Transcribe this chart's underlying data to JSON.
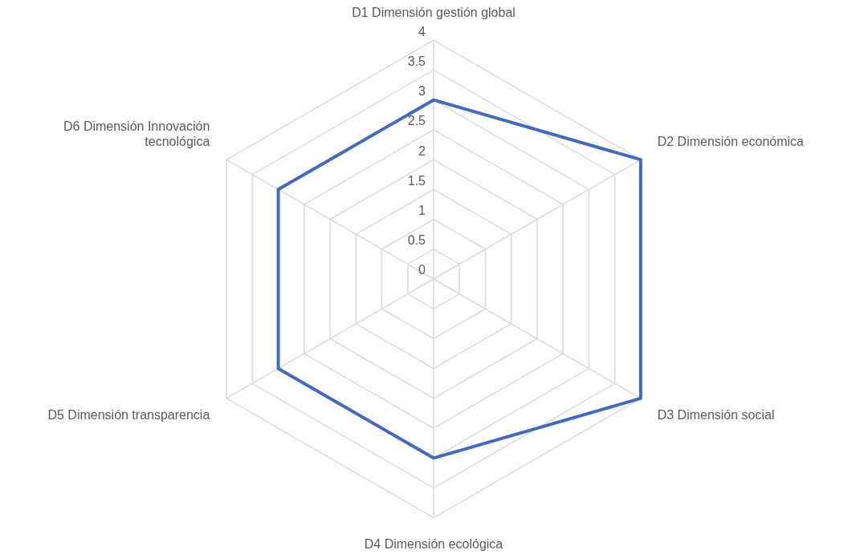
{
  "chart_data": {
    "type": "radar",
    "categories": [
      "D1 Dimensión gestión global",
      "D2 Dimensión económica",
      "D3 Dimensión social",
      "D4 Dimensión ecológica",
      "D5 Dimensión transparencia",
      "D6 Dimensión Innovación tecnológica"
    ],
    "series": [
      {
        "color": "#4169c4",
        "values": [
          3,
          4,
          4,
          3,
          3,
          3
        ]
      }
    ],
    "ylim": [
      0,
      4
    ],
    "yticks": [
      0,
      0.5,
      1,
      1.5,
      2,
      2.5,
      3,
      3.5,
      4
    ],
    "grid": true,
    "legend": false,
    "marker": "none"
  }
}
